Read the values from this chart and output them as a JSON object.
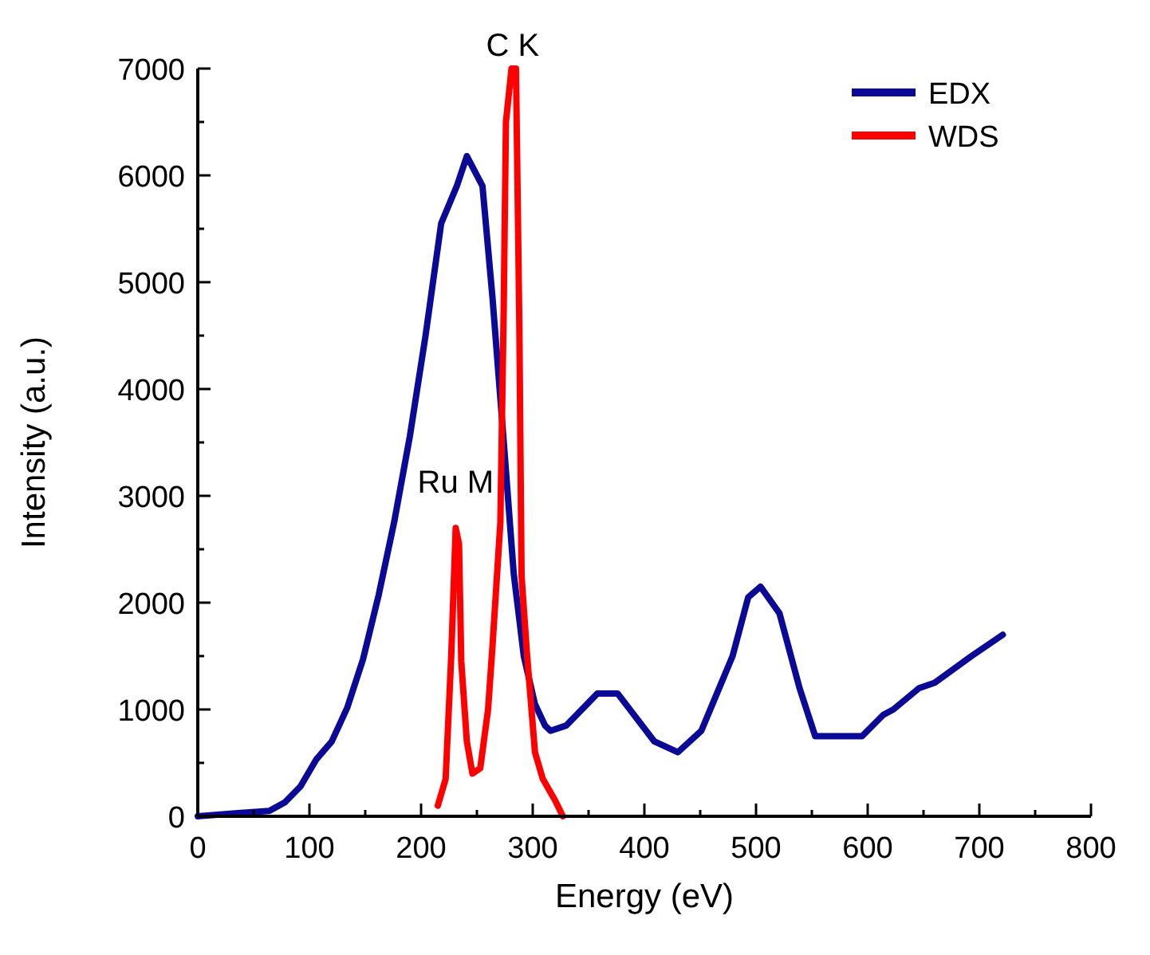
{
  "chart_data": {
    "type": "line",
    "xlabel": "Energy (eV)",
    "ylabel": "Intensity (a.u.)",
    "xlim": [
      0,
      800
    ],
    "ylim": [
      0,
      7000
    ],
    "xticks": [
      0,
      {
        "value": 50,
        "label": null
      },
      100,
      {
        "value": 150,
        "label": null
      },
      200,
      {
        "value": 250,
        "label": null
      },
      300,
      {
        "value": 350,
        "label": null
      },
      400,
      {
        "value": 450,
        "label": null
      },
      500,
      {
        "value": 550,
        "label": null
      },
      600,
      {
        "value": 650,
        "label": null
      },
      700,
      {
        "value": 750,
        "label": null
      },
      800
    ],
    "yticks": [
      0,
      {
        "value": 500,
        "label": null
      },
      1000,
      {
        "value": 1500,
        "label": null
      },
      2000,
      {
        "value": 2500,
        "label": null
      },
      3000,
      {
        "value": 3500,
        "label": null
      },
      4000,
      {
        "value": 4500,
        "label": null
      },
      5000,
      {
        "value": 5500,
        "label": null
      },
      6000,
      {
        "value": 6500,
        "label": null
      },
      7000
    ],
    "grid": false,
    "legend": "top right",
    "line_style": "solid",
    "annotations": [
      {
        "text": "C K",
        "x": 282,
        "y": 7000
      },
      {
        "text": "Ru M",
        "x": 231,
        "y": 2700
      }
    ],
    "series": [
      {
        "name": "EDX",
        "color": "#0a0a96",
        "x": [
          0,
          36,
          64,
          78,
          92,
          106,
          120,
          134,
          148,
          162,
          176,
          190,
          204,
          218,
          232,
          241,
          255,
          264,
          274,
          283,
          292,
          302,
          311,
          316,
          330,
          358,
          376,
          409,
          430,
          451,
          465,
          479,
          493,
          504,
          521,
          539,
          553,
          595,
          614,
          623,
          646,
          660,
          693,
          721
        ],
        "values": [
          0,
          30,
          50,
          130,
          280,
          530,
          700,
          1020,
          1470,
          2070,
          2760,
          3560,
          4500,
          5550,
          5900,
          6180,
          5900,
          4850,
          3510,
          2270,
          1500,
          1050,
          850,
          800,
          850,
          1150,
          1150,
          700,
          600,
          800,
          1150,
          1500,
          2050,
          2150,
          1900,
          1200,
          750,
          750,
          950,
          1000,
          1200,
          1250,
          1500,
          1700
        ]
      },
      {
        "name": "WDS",
        "color": "#ff0000",
        "x": [
          215,
          222,
          227,
          231,
          234,
          236,
          241,
          246,
          253,
          260,
          264,
          271,
          274,
          276,
          281,
          285,
          288,
          290,
          295,
          302,
          309,
          320,
          327
        ],
        "values": [
          100,
          350,
          1500,
          2700,
          2550,
          1450,
          700,
          400,
          450,
          1000,
          1600,
          2750,
          4750,
          6500,
          7000,
          7000,
          4600,
          2250,
          1500,
          600,
          350,
          150,
          0
        ]
      }
    ]
  }
}
